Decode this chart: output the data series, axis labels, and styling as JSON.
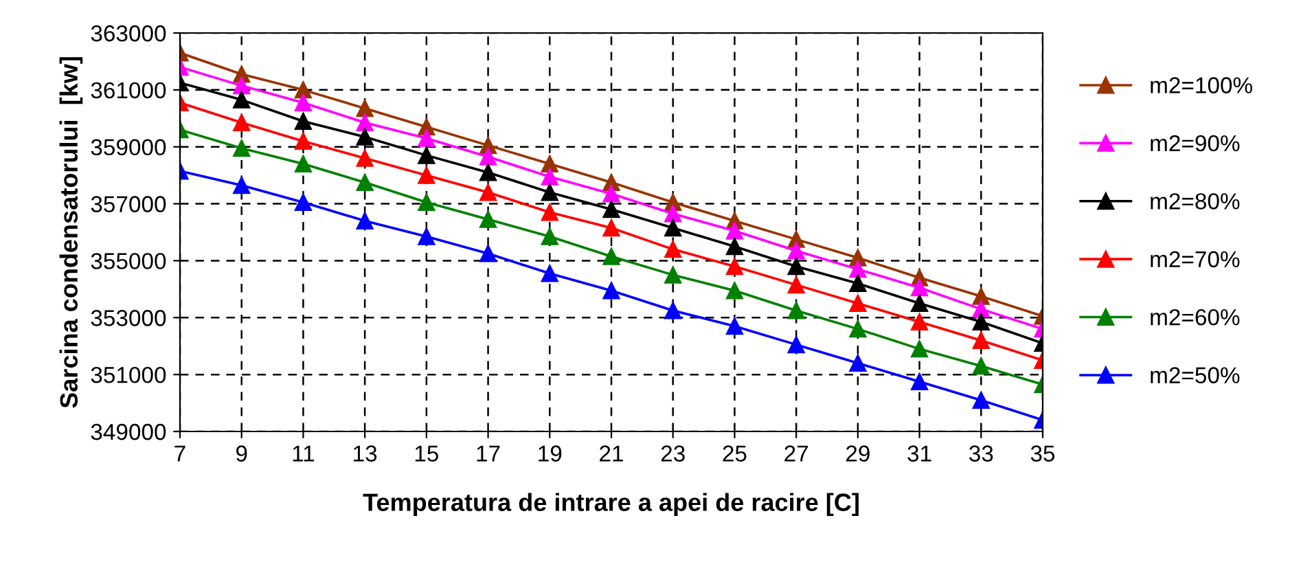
{
  "chart_data": {
    "type": "line",
    "xlabel": "Temperatura de intrare a apei de racire [C]",
    "ylabel": "Sarcina condensatorului  [kw]",
    "x": [
      7,
      9,
      11,
      13,
      15,
      17,
      19,
      21,
      23,
      25,
      27,
      29,
      31,
      33,
      35
    ],
    "series": [
      {
        "name": "m2=100%",
        "color": "#993300",
        "values": [
          362300,
          361550,
          361000,
          360350,
          359700,
          359050,
          358400,
          357750,
          357050,
          356400,
          355750,
          355100,
          354400,
          353750,
          353050
        ]
      },
      {
        "name": "m2=90%",
        "color": "#ff00ff",
        "values": [
          361800,
          361150,
          360550,
          359850,
          359300,
          358650,
          357950,
          357350,
          356650,
          356050,
          355350,
          354700,
          354050,
          353300,
          352600
        ]
      },
      {
        "name": "m2=80%",
        "color": "#000000",
        "values": [
          361250,
          360650,
          359900,
          359350,
          358700,
          358100,
          357400,
          356800,
          356150,
          355500,
          354800,
          354200,
          353500,
          352850,
          352100
        ]
      },
      {
        "name": "m2=70%",
        "color": "#ff0000",
        "values": [
          360550,
          359850,
          359200,
          358600,
          358000,
          357400,
          356700,
          356150,
          355400,
          354800,
          354150,
          353500,
          352850,
          352200,
          351500
        ]
      },
      {
        "name": "m2=60%",
        "color": "#008000",
        "values": [
          359600,
          358950,
          358400,
          357750,
          357050,
          356450,
          355850,
          355150,
          354500,
          353950,
          353250,
          352600,
          351900,
          351300,
          350650
        ]
      },
      {
        "name": "m2=50%",
        "color": "#0000ff",
        "values": [
          358150,
          357650,
          357050,
          356400,
          355850,
          355250,
          354550,
          353950,
          353250,
          352700,
          352050,
          351400,
          350750,
          350100,
          349400
        ]
      }
    ],
    "xlim": [
      7,
      35
    ],
    "xticks": [
      7,
      9,
      11,
      13,
      15,
      17,
      19,
      21,
      23,
      25,
      27,
      29,
      31,
      33,
      35
    ],
    "ylim": [
      349000,
      363000
    ],
    "yticks": [
      349000,
      351000,
      353000,
      355000,
      357000,
      359000,
      361000,
      363000
    ],
    "grid": true,
    "legend": "right",
    "marker": "triangle",
    "line_style": "solid"
  }
}
